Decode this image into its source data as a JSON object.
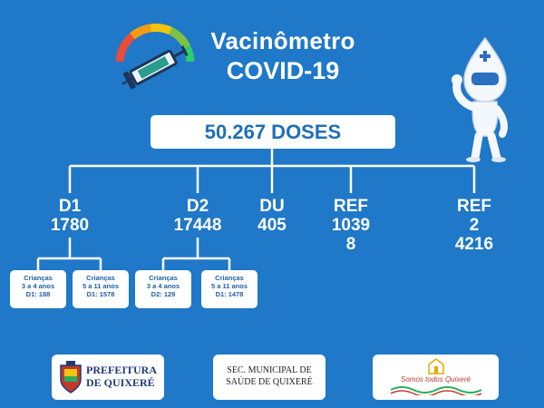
{
  "header": {
    "title": "Vacinômetro",
    "subtitle": "COVID-19"
  },
  "total": {
    "label": "50.267 DOSES"
  },
  "categories": [
    {
      "label": "D1",
      "value": "1780"
    },
    {
      "label": "D2",
      "value": "17448"
    },
    {
      "label": "DU",
      "value": "405"
    },
    {
      "label": "REF",
      "value_line1": "1039",
      "value_line2": "8"
    },
    {
      "label": "REF",
      "value_line1": "2",
      "value_line2": "4216"
    }
  ],
  "children_boxes": [
    {
      "title": "Crianças",
      "age": "3 a 4 anos",
      "dose": "D1: 188"
    },
    {
      "title": "Crianças",
      "age": "5 a 11 anos",
      "dose": "D1: 1578"
    },
    {
      "title": "Crianças",
      "age": "3 a 4 anos",
      "dose": "D2: 129"
    },
    {
      "title": "Crianças",
      "age": "5 a 11 anos",
      "dose": "D1: 1478"
    }
  ],
  "footer": {
    "prefeitura_line1": "PREFEITURA",
    "prefeitura_line2": "DE QUIXERÉ",
    "secretaria_line1": "SEC. MUNICIPAL DE",
    "secretaria_line2": "SAÚDE DE QUIXERÉ",
    "slogan": "Somos todos Quixeré"
  },
  "colors": {
    "background": "#1f78c8",
    "box": "#ffffff",
    "accent_text": "#1f6fb8"
  }
}
